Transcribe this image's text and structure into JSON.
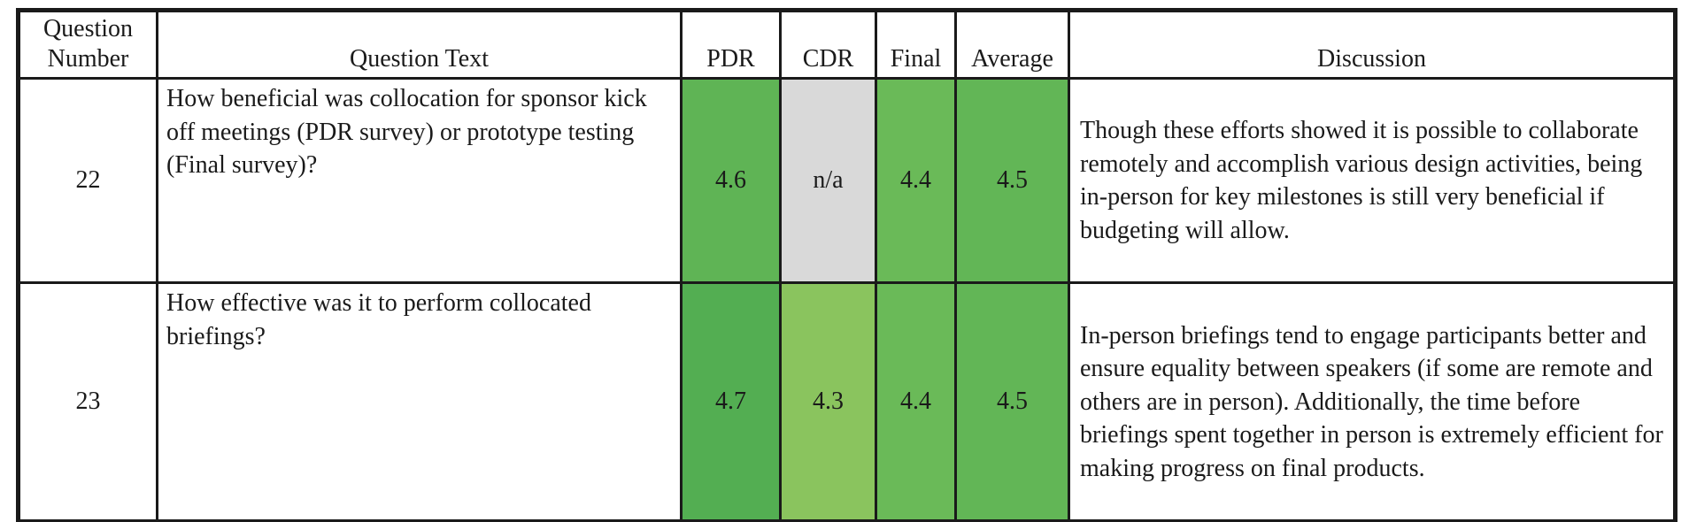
{
  "table": {
    "headers": {
      "question_number": "Question Number",
      "question_text": "Question Text",
      "pdr": "PDR",
      "cdr": "CDR",
      "final": "Final",
      "average": "Average",
      "discussion": "Discussion"
    },
    "colors": {
      "na_gray": "#d9d9d9",
      "border_black": "#1a1a1a"
    },
    "rows": [
      {
        "number": "22",
        "question": "How beneficial was collocation for sponsor kick off meetings (PDR survey) or prototype testing (Final survey)?",
        "pdr": {
          "value": "4.6",
          "color": "#5fb455"
        },
        "cdr": {
          "value": "n/a",
          "color": "#d9d9d9"
        },
        "final": {
          "value": "4.4",
          "color": "#6aba58"
        },
        "average": {
          "value": "4.5",
          "color": "#62b656"
        },
        "discussion": "Though these efforts showed it is possible to collaborate remotely and accomplish various design activities, being in-person for key milestones is still very beneficial if budgeting will allow."
      },
      {
        "number": "23",
        "question": "How effective was it to perform collocated briefings?",
        "pdr": {
          "value": "4.7",
          "color": "#53ae52"
        },
        "cdr": {
          "value": "4.3",
          "color": "#8ac45e"
        },
        "final": {
          "value": "4.4",
          "color": "#6aba58"
        },
        "average": {
          "value": "4.5",
          "color": "#62b656"
        },
        "discussion": "In-person briefings tend to engage participants better and ensure equality between speakers (if some are remote and others are in person). Additionally, the time before briefings spent together in person is extremely efficient for making progress on final products."
      }
    ]
  }
}
